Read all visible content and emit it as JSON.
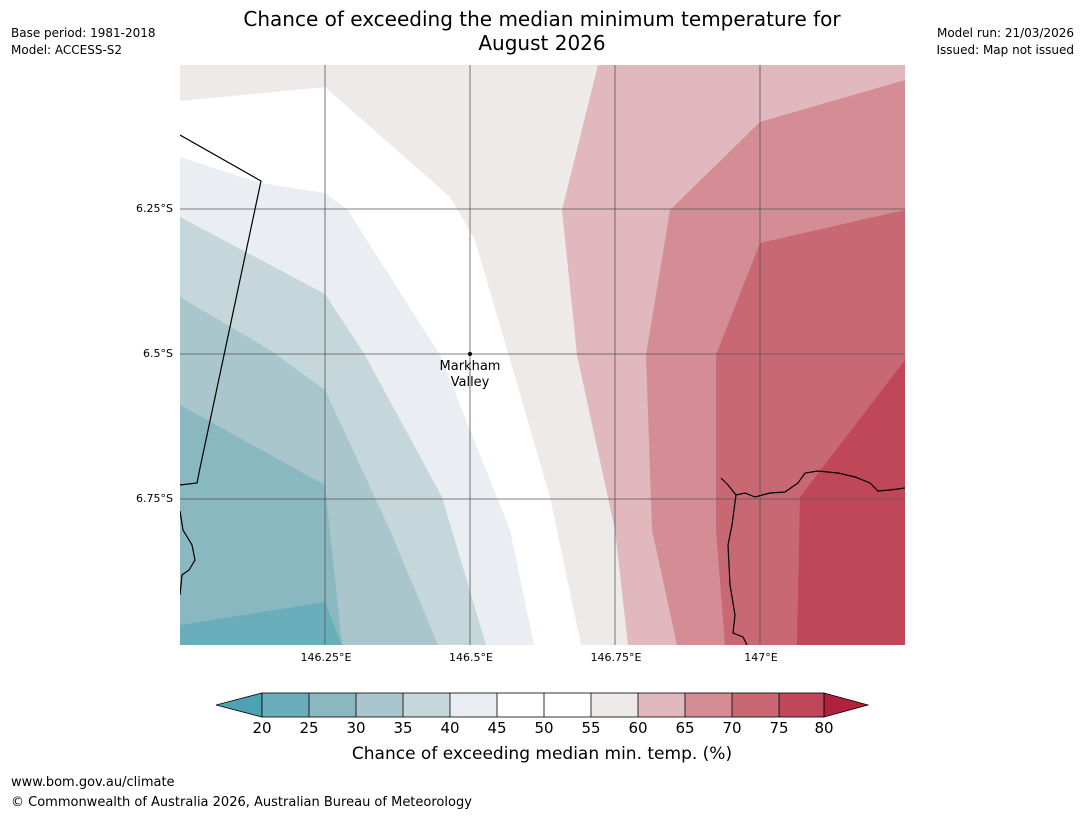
{
  "header": {
    "base_period": "Base period: 1981-2018",
    "model": "Model: ACCESS-S2",
    "title_line1": "Chance of exceeding the median minimum temperature for",
    "title_line2": "August 2026",
    "model_run": "Model run: 21/03/2026",
    "issued": "Issued: Map not issued"
  },
  "map": {
    "lat_labels": [
      "6.25°S",
      "6.5°S",
      "6.75°S"
    ],
    "lon_labels": [
      "146.25°E",
      "146.5°E",
      "146.75°E",
      "147°E"
    ],
    "place": {
      "line1": "Markham",
      "line2": "Valley"
    }
  },
  "legend": {
    "ticks": [
      "20",
      "25",
      "30",
      "35",
      "40",
      "45",
      "50",
      "55",
      "60",
      "65",
      "70",
      "75",
      "80"
    ],
    "label": "Chance of exceeding median min. temp. (%)",
    "colors": {
      "below20": "#4ea3b3",
      "b20_25": "#6aaebb",
      "b25_30": "#8ab8c1",
      "b30_35": "#a8c6cb",
      "b35_40": "#c6d7dc",
      "b40_45": "#eaeef2",
      "b45_55": "#ffffff",
      "b55_60": "#eeeae9",
      "b60_65": "#e0b8be",
      "b65_70": "#d48d95",
      "b70_75": "#c86872",
      "b75_80": "#bf4757",
      "above80": "#b3203b"
    }
  },
  "footer": {
    "url": "www.bom.gov.au/climate",
    "copyright": "© Commonwealth of Australia 2026, Australian Bureau of Meteorology"
  }
}
